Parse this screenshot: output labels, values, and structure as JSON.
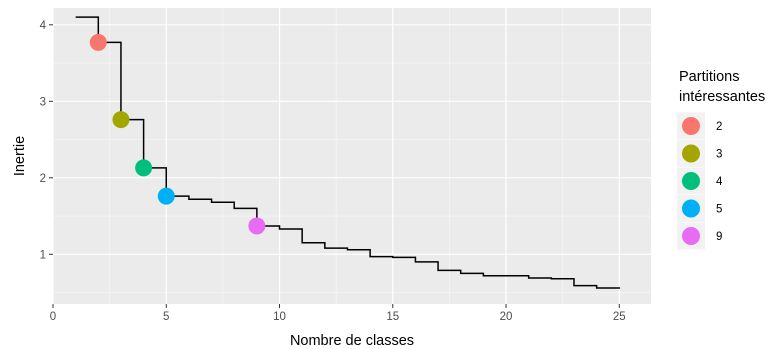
{
  "chart_data": {
    "type": "line",
    "xlabel": "Nombre de classes",
    "ylabel": "Inertie",
    "xlim": [
      0,
      26.4
    ],
    "ylim": [
      0.35,
      4.22
    ],
    "x_ticks": [
      0,
      5,
      10,
      15,
      20,
      25
    ],
    "y_ticks": [
      1,
      2,
      3,
      4
    ],
    "x_tick_labels": [
      "0",
      "5",
      "10",
      "15",
      "20",
      "25"
    ],
    "y_tick_labels": [
      "1",
      "2",
      "3",
      "4"
    ],
    "grid": true,
    "background": "#ebebeb",
    "step_line": {
      "color": "#000000",
      "x": [
        1,
        2,
        3,
        4,
        5,
        6,
        7,
        8,
        9,
        10,
        11,
        12,
        13,
        14,
        15,
        16,
        17,
        18,
        19,
        20,
        21,
        22,
        23,
        24,
        25
      ],
      "y": [
        4.1,
        3.77,
        2.76,
        2.13,
        1.76,
        1.72,
        1.68,
        1.6,
        1.37,
        1.33,
        1.15,
        1.08,
        1.06,
        0.97,
        0.96,
        0.9,
        0.79,
        0.75,
        0.72,
        0.72,
        0.69,
        0.68,
        0.59,
        0.56,
        0.55
      ]
    },
    "legend": {
      "title_lines": [
        "Partitions",
        "intéressantes"
      ],
      "placement": "right"
    },
    "points": [
      {
        "name": "2",
        "x": 2,
        "y": 3.77,
        "color": "#F8766D"
      },
      {
        "name": "3",
        "x": 3,
        "y": 2.76,
        "color": "#A3A500"
      },
      {
        "name": "4",
        "x": 4,
        "y": 2.13,
        "color": "#00BF7D"
      },
      {
        "name": "5",
        "x": 5,
        "y": 1.76,
        "color": "#00B0F6"
      },
      {
        "name": "9",
        "x": 9,
        "y": 1.37,
        "color": "#E76BF3"
      }
    ]
  }
}
